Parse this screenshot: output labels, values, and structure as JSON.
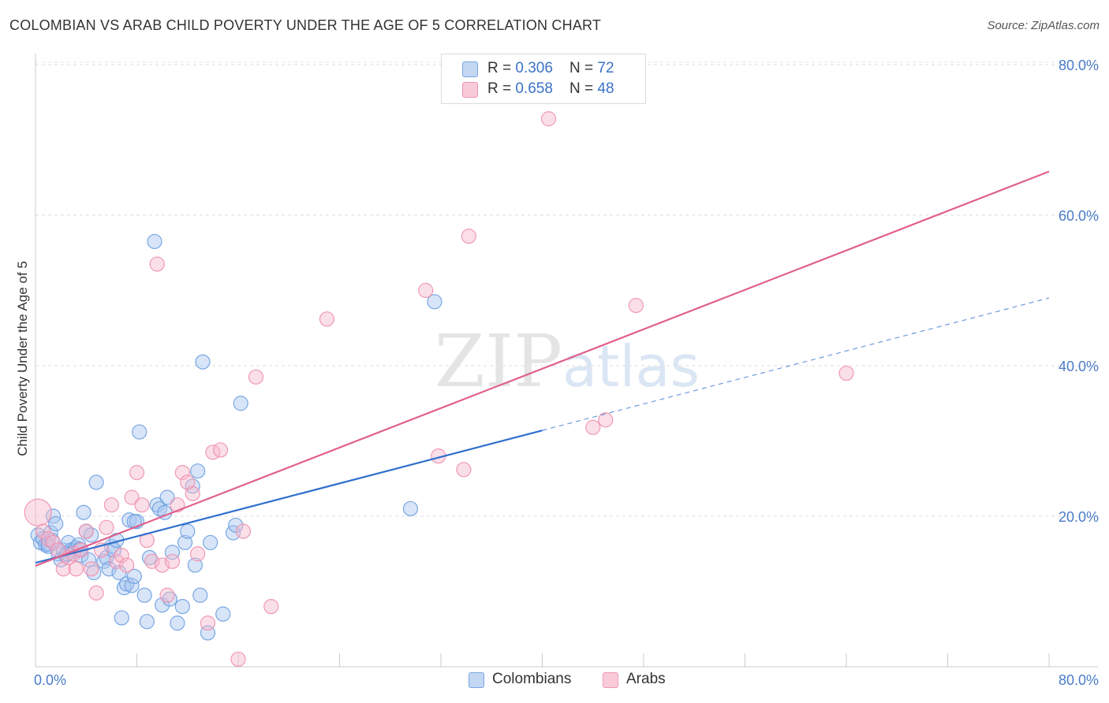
{
  "header": {
    "title": "COLOMBIAN VS ARAB CHILD POVERTY UNDER THE AGE OF 5 CORRELATION CHART",
    "source": "Source: ZipAtlas.com"
  },
  "watermark": {
    "zip": "ZIP",
    "atlas": "atlas"
  },
  "legend": {
    "rows": [
      {
        "r_label": "R = ",
        "r_value": "0.306",
        "n_label": "N = ",
        "n_value": "72",
        "color": "#a9c6ef"
      },
      {
        "r_label": "R = ",
        "r_value": "0.658",
        "n_label": "N = ",
        "n_value": "48",
        "color": "#f6b8cb"
      }
    ]
  },
  "bottom_legend": [
    {
      "label": "Colombians",
      "color": "#a9c6ef"
    },
    {
      "label": "Arabs",
      "color": "#f6b8cb"
    }
  ],
  "chart_data": {
    "type": "scatter",
    "title": "COLOMBIAN VS ARAB CHILD POVERTY UNDER THE AGE OF 5 CORRELATION CHART",
    "xlabel": "",
    "ylabel": "Child Poverty Under the Age of 5",
    "xlim": [
      0,
      80
    ],
    "ylim": [
      0,
      80
    ],
    "x_tick_labels": [
      "0.0%",
      "80.0%"
    ],
    "y_ticks": [
      20,
      40,
      60,
      80
    ],
    "y_tick_labels": [
      "20.0%",
      "40.0%",
      "60.0%",
      "80.0%"
    ],
    "grid": "horizontal dashed",
    "legend_position": "top-center",
    "series": [
      {
        "name": "Colombians",
        "color": "#6b9fe0",
        "fill": "#a9c6ef",
        "trend": {
          "x0": 0,
          "y0": 13.8,
          "x1": 40,
          "y1": 31.4,
          "dashed_to": {
            "x": 80,
            "y": 49.0
          },
          "color": "#2f6fcd"
        },
        "points": [
          [
            0.2,
            17.5
          ],
          [
            0.4,
            16.5
          ],
          [
            0.6,
            17.0
          ],
          [
            0.8,
            16.2
          ],
          [
            1.0,
            16.0
          ],
          [
            1.2,
            17.8
          ],
          [
            1.4,
            20.0
          ],
          [
            1.6,
            19.0
          ],
          [
            1.8,
            15.0
          ],
          [
            2.0,
            14.2
          ],
          [
            2.2,
            15.5
          ],
          [
            2.4,
            14.8
          ],
          [
            2.6,
            16.5
          ],
          [
            2.8,
            15.5
          ],
          [
            3.0,
            15.3
          ],
          [
            3.2,
            15.8
          ],
          [
            3.4,
            16.2
          ],
          [
            3.6,
            14.8
          ],
          [
            3.8,
            20.5
          ],
          [
            4.0,
            18.0
          ],
          [
            4.2,
            14.2
          ],
          [
            4.4,
            17.5
          ],
          [
            4.6,
            12.5
          ],
          [
            4.8,
            24.5
          ],
          [
            5.4,
            14.0
          ],
          [
            5.6,
            14.5
          ],
          [
            5.8,
            13.0
          ],
          [
            6.0,
            16.0
          ],
          [
            6.2,
            15.5
          ],
          [
            6.4,
            16.8
          ],
          [
            6.6,
            12.5
          ],
          [
            6.8,
            6.5
          ],
          [
            7.0,
            10.5
          ],
          [
            7.2,
            11.0
          ],
          [
            7.4,
            19.5
          ],
          [
            7.6,
            10.8
          ],
          [
            7.8,
            12.0
          ],
          [
            8.0,
            19.3
          ],
          [
            8.2,
            31.2
          ],
          [
            8.6,
            9.5
          ],
          [
            8.8,
            6.0
          ],
          [
            9.0,
            14.5
          ],
          [
            9.4,
            56.5
          ],
          [
            9.6,
            21.5
          ],
          [
            9.8,
            21.0
          ],
          [
            10.0,
            8.2
          ],
          [
            10.2,
            20.5
          ],
          [
            10.4,
            22.5
          ],
          [
            10.6,
            9.0
          ],
          [
            10.8,
            15.2
          ],
          [
            11.2,
            5.8
          ],
          [
            11.6,
            8.0
          ],
          [
            11.8,
            16.5
          ],
          [
            12.0,
            18.0
          ],
          [
            12.4,
            24.0
          ],
          [
            12.6,
            13.5
          ],
          [
            12.8,
            26.0
          ],
          [
            13.0,
            9.5
          ],
          [
            13.2,
            40.5
          ],
          [
            13.6,
            4.5
          ],
          [
            13.8,
            16.5
          ],
          [
            14.8,
            7.0
          ],
          [
            15.6,
            17.8
          ],
          [
            15.8,
            18.8
          ],
          [
            16.2,
            35.0
          ],
          [
            29.6,
            21.0
          ],
          [
            31.5,
            48.5
          ],
          [
            1.0,
            16.3
          ],
          [
            1.3,
            16.8
          ],
          [
            2.5,
            15.0
          ],
          [
            3.5,
            15.6
          ],
          [
            7.8,
            19.3
          ]
        ]
      },
      {
        "name": "Arabs",
        "color": "#ee8fae",
        "fill": "#f6b8cb",
        "trend": {
          "x0": 0,
          "y0": 13.4,
          "x1": 80,
          "y1": 65.8,
          "color": "#e0608c"
        },
        "points": [
          [
            0.2,
            20.5
          ],
          [
            0.6,
            18.0
          ],
          [
            1.0,
            17.0
          ],
          [
            1.4,
            16.5
          ],
          [
            1.8,
            15.5
          ],
          [
            2.2,
            13.0
          ],
          [
            2.6,
            14.5
          ],
          [
            3.0,
            15.0
          ],
          [
            3.2,
            13.0
          ],
          [
            3.6,
            15.5
          ],
          [
            4.0,
            18.0
          ],
          [
            4.4,
            13.0
          ],
          [
            4.8,
            9.8
          ],
          [
            5.2,
            15.5
          ],
          [
            5.6,
            18.5
          ],
          [
            6.0,
            21.5
          ],
          [
            6.4,
            14.0
          ],
          [
            6.8,
            14.8
          ],
          [
            7.2,
            13.5
          ],
          [
            7.6,
            22.5
          ],
          [
            8.0,
            25.8
          ],
          [
            8.4,
            21.5
          ],
          [
            8.8,
            16.8
          ],
          [
            9.2,
            14.0
          ],
          [
            9.6,
            53.5
          ],
          [
            10.0,
            13.5
          ],
          [
            10.4,
            9.5
          ],
          [
            10.8,
            14.0
          ],
          [
            11.2,
            21.5
          ],
          [
            11.6,
            25.8
          ],
          [
            12.0,
            24.5
          ],
          [
            12.4,
            23.0
          ],
          [
            12.8,
            15.0
          ],
          [
            13.6,
            5.8
          ],
          [
            14.0,
            28.5
          ],
          [
            14.6,
            28.8
          ],
          [
            16.0,
            1.0
          ],
          [
            16.4,
            18.0
          ],
          [
            17.4,
            38.5
          ],
          [
            18.6,
            8.0
          ],
          [
            23.0,
            46.2
          ],
          [
            30.8,
            50.0
          ],
          [
            31.8,
            28.0
          ],
          [
            34.2,
            57.2
          ],
          [
            33.8,
            26.2
          ],
          [
            44.0,
            31.8
          ],
          [
            45.0,
            32.8
          ],
          [
            47.4,
            48.0
          ]
        ],
        "extra_points": [
          [
            40.5,
            72.8
          ],
          [
            64.0,
            39.0
          ]
        ]
      }
    ]
  }
}
